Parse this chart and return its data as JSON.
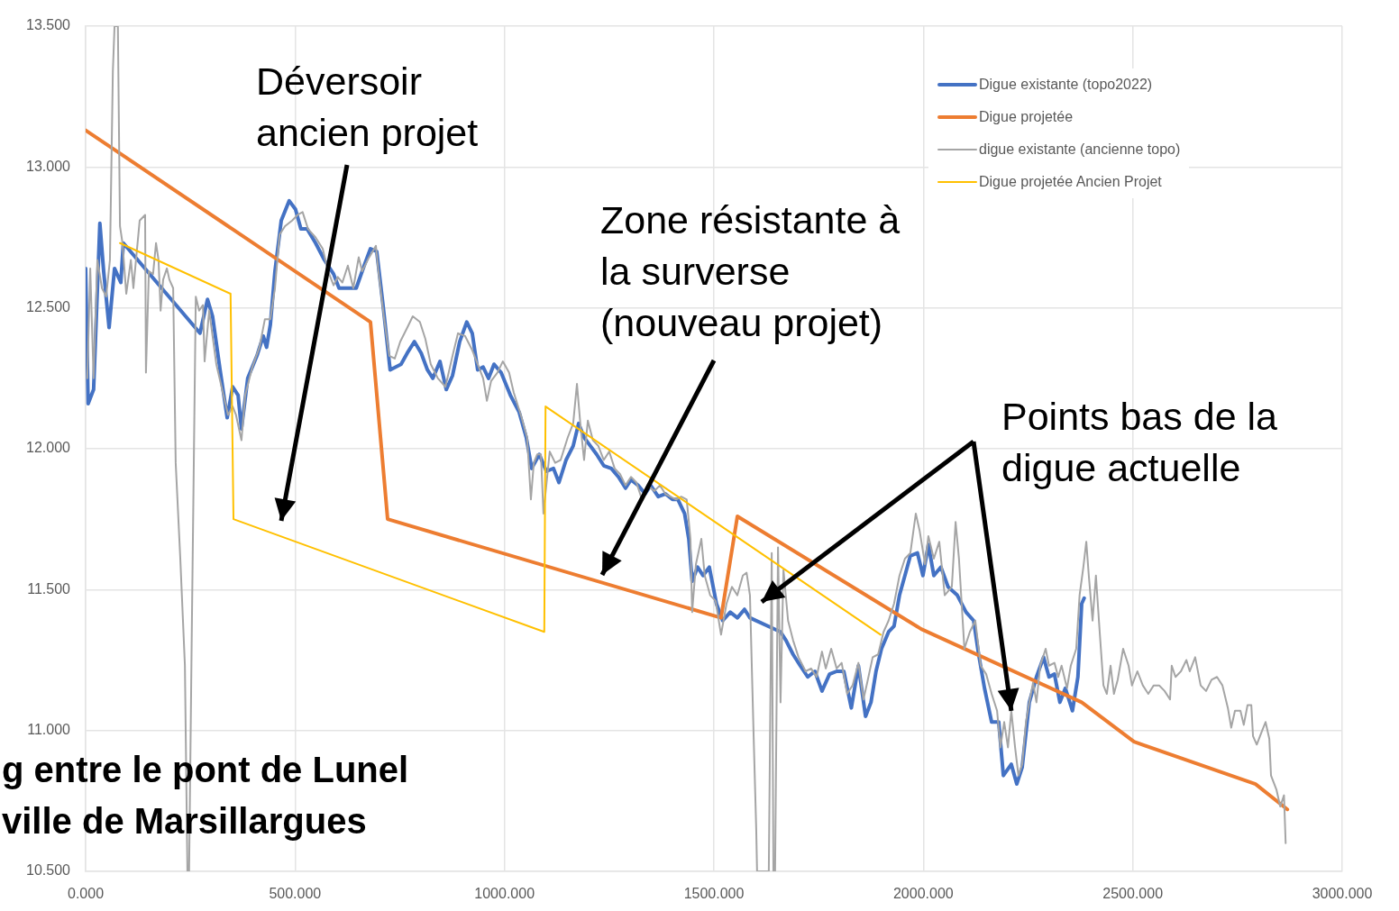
{
  "chart_data": {
    "type": "line",
    "xlim": [
      0,
      3000
    ],
    "ylim": [
      10.5,
      13.5
    ],
    "xticks": [
      {
        "value": 0,
        "label": "0.000"
      },
      {
        "value": 500,
        "label": "500.000"
      },
      {
        "value": 1000,
        "label": "1000.000"
      },
      {
        "value": 1500,
        "label": "1500.000"
      },
      {
        "value": 2000,
        "label": "2000.000"
      },
      {
        "value": 2500,
        "label": "2500.000"
      },
      {
        "value": 3000,
        "label": "3000.000"
      }
    ],
    "yticks": [
      {
        "value": 10.5,
        "label": "10.500"
      },
      {
        "value": 11,
        "label": "11.000"
      },
      {
        "value": 11.5,
        "label": "11.500"
      },
      {
        "value": 12,
        "label": "12.000"
      },
      {
        "value": 12.5,
        "label": "12.500"
      },
      {
        "value": 13,
        "label": "13.000"
      },
      {
        "value": 13.5,
        "label": "13.500"
      }
    ],
    "grid": true,
    "legend": "top right",
    "marker": "none",
    "line_style": "solid",
    "series": [
      {
        "name": "Digue existante (topo2022)",
        "color": "#4472c4",
        "x": [
          0,
          6,
          19,
          34,
          43,
          56,
          69,
          84,
          90,
          273,
          291,
          303,
          321,
          338,
          351,
          364,
          372,
          387,
          409,
          424,
          432,
          441,
          452,
          467,
          486,
          501,
          514,
          529,
          549,
          570,
          592,
          605,
          646,
          665,
          680,
          695,
          710,
          727,
          753,
          768,
          785,
          801,
          816,
          829,
          846,
          861,
          876,
          893,
          910,
          923,
          936,
          949,
          962,
          975,
          992,
          1014,
          1035,
          1052,
          1065,
          1083,
          1100,
          1117,
          1130,
          1147,
          1164,
          1177,
          1190,
          1205,
          1220,
          1237,
          1255,
          1272,
          1289,
          1302,
          1319,
          1336,
          1349,
          1367,
          1384,
          1401,
          1414,
          1430,
          1440,
          1448,
          1461,
          1474,
          1489,
          1506,
          1521,
          1539,
          1556,
          1573,
          1586,
          1659,
          1672,
          1689,
          1706,
          1724,
          1741,
          1758,
          1776,
          1793,
          1810,
          1828,
          1845,
          1862,
          1875,
          1887,
          1900,
          1917,
          1930,
          1943,
          1956,
          1969,
          1986,
          1999,
          2012,
          2025,
          2042,
          2059,
          2081,
          2102,
          2120,
          2132,
          2146,
          2163,
          2180,
          2191,
          2210,
          2223,
          2236,
          2253,
          2270,
          2287,
          2300,
          2313,
          2326,
          2339,
          2356,
          2369,
          2378,
          2384
        ],
        "values": [
          12.64,
          12.16,
          12.21,
          12.8,
          12.63,
          12.43,
          12.64,
          12.59,
          12.73,
          12.41,
          12.53,
          12.47,
          12.28,
          12.11,
          12.22,
          12.19,
          12.07,
          12.25,
          12.33,
          12.4,
          12.36,
          12.44,
          12.63,
          12.81,
          12.88,
          12.85,
          12.78,
          12.78,
          12.73,
          12.67,
          12.62,
          12.57,
          12.57,
          12.65,
          12.71,
          12.7,
          12.51,
          12.28,
          12.3,
          12.34,
          12.38,
          12.34,
          12.28,
          12.25,
          12.31,
          12.21,
          12.26,
          12.38,
          12.45,
          12.41,
          12.28,
          12.29,
          12.25,
          12.3,
          12.27,
          12.19,
          12.13,
          12.04,
          11.93,
          11.98,
          11.92,
          11.93,
          11.88,
          11.96,
          12.01,
          12.09,
          12.04,
          12.01,
          11.98,
          11.94,
          11.93,
          11.9,
          11.86,
          11.89,
          11.87,
          11.84,
          11.87,
          11.83,
          11.84,
          11.82,
          11.82,
          11.77,
          11.68,
          11.53,
          11.58,
          11.55,
          11.58,
          11.45,
          11.39,
          11.42,
          11.4,
          11.43,
          11.4,
          11.35,
          11.32,
          11.27,
          11.23,
          11.19,
          11.21,
          11.14,
          11.2,
          11.21,
          11.21,
          11.08,
          11.23,
          11.05,
          11.1,
          11.21,
          11.29,
          11.35,
          11.37,
          11.48,
          11.55,
          11.62,
          11.63,
          11.55,
          11.66,
          11.55,
          11.58,
          11.51,
          11.48,
          11.42,
          11.39,
          11.27,
          11.15,
          11.03,
          11.03,
          10.84,
          10.88,
          10.81,
          10.87,
          11.1,
          11.19,
          11.26,
          11.19,
          11.2,
          11.1,
          11.15,
          11.07,
          11.19,
          11.45,
          11.47
        ]
      },
      {
        "name": "Digue projetée",
        "color": "#ed7d31",
        "x": [
          0,
          680,
          721,
          1517,
          1556,
          1995,
          2378,
          2503,
          2793,
          2869
        ],
        "values": [
          13.13,
          12.45,
          11.75,
          11.4,
          11.76,
          11.36,
          11.1,
          10.96,
          10.81,
          10.72
        ]
      },
      {
        "name": "digue existante (ancienne topo)",
        "color": "#a5a5a5",
        "x": [
          4,
          11,
          19,
          28,
          39,
          49,
          58,
          65,
          69,
          77,
          82,
          88,
          97,
          108,
          114,
          129,
          142,
          144,
          151,
          161,
          168,
          174,
          179,
          185,
          194,
          200,
          209,
          215,
          226,
          237,
          243,
          247,
          254,
          263,
          271,
          280,
          284,
          295,
          312,
          329,
          340,
          351,
          359,
          372,
          381,
          398,
          415,
          428,
          441,
          452,
          463,
          476,
          493,
          506,
          518,
          531,
          549,
          566,
          579,
          592,
          602,
          613,
          626,
          639,
          652,
          660,
          677,
          693,
          699,
          712,
          725,
          738,
          751,
          768,
          781,
          798,
          811,
          824,
          841,
          859,
          876,
          889,
          906,
          923,
          936,
          949,
          958,
          968,
          983,
          996,
          1011,
          1022,
          1039,
          1054,
          1063,
          1070,
          1078,
          1087,
          1093,
          1108,
          1121,
          1134,
          1151,
          1164,
          1173,
          1181,
          1190,
          1199,
          1211,
          1224,
          1237,
          1250,
          1263,
          1276,
          1289,
          1302,
          1315,
          1328,
          1341,
          1358,
          1371,
          1384,
          1396,
          1410,
          1422,
          1435,
          1444,
          1448,
          1457,
          1470,
          1478,
          1491,
          1504,
          1517,
          1530,
          1543,
          1556,
          1569,
          1578,
          1586,
          1595,
          1601,
          1603,
          1631,
          1638,
          1642,
          1646,
          1653,
          1659,
          1666,
          1677,
          1689,
          1702,
          1719,
          1732,
          1745,
          1758,
          1767,
          1780,
          1793,
          1805,
          1818,
          1831,
          1845,
          1857,
          1866,
          1879,
          1892,
          1905,
          1917,
          1930,
          1943,
          1956,
          1969,
          1982,
          1991,
          2004,
          2012,
          2025,
          2038,
          2051,
          2068,
          2077,
          2085,
          2098,
          2111,
          2124,
          2137,
          2150,
          2163,
          2176,
          2184,
          2193,
          2202,
          2210,
          2219,
          2227,
          2236,
          2245,
          2253,
          2262,
          2270,
          2279,
          2292,
          2300,
          2313,
          2322,
          2330,
          2343,
          2352,
          2365,
          2373,
          2382,
          2389,
          2395,
          2404,
          2412,
          2421,
          2430,
          2438,
          2447,
          2455,
          2464,
          2477,
          2490,
          2498,
          2511,
          2524,
          2537,
          2550,
          2563,
          2576,
          2589,
          2593,
          2602,
          2615,
          2628,
          2636,
          2649,
          2662,
          2675,
          2688,
          2701,
          2714,
          2727,
          2735,
          2744,
          2757,
          2765,
          2774,
          2783,
          2787,
          2796,
          2809,
          2817,
          2826,
          2830,
          2843,
          2852,
          2861,
          2865
        ],
        "values": [
          12.25,
          12.64,
          12.25,
          12.67,
          12.57,
          12.54,
          12.67,
          13.34,
          13.5,
          13.5,
          12.79,
          12.73,
          12.55,
          12.67,
          12.57,
          12.81,
          12.83,
          12.27,
          12.63,
          12.62,
          12.73,
          12.67,
          12.49,
          12.6,
          12.64,
          12.6,
          12.57,
          11.95,
          11.61,
          11.23,
          10.5,
          10.5,
          11.42,
          12.54,
          12.49,
          12.51,
          12.31,
          12.49,
          12.3,
          12.19,
          12.12,
          12.15,
          12.12,
          12.03,
          12.19,
          12.29,
          12.36,
          12.46,
          12.46,
          12.57,
          12.76,
          12.79,
          12.81,
          12.83,
          12.84,
          12.78,
          12.75,
          12.71,
          12.63,
          12.58,
          12.61,
          12.59,
          12.65,
          12.57,
          12.68,
          12.63,
          12.68,
          12.72,
          12.63,
          12.47,
          12.33,
          12.32,
          12.38,
          12.43,
          12.47,
          12.45,
          12.39,
          12.3,
          12.25,
          12.22,
          12.33,
          12.41,
          12.4,
          12.35,
          12.3,
          12.25,
          12.17,
          12.24,
          12.27,
          12.31,
          12.27,
          12.2,
          12.12,
          12.04,
          11.82,
          11.95,
          11.98,
          11.98,
          11.77,
          11.99,
          11.95,
          11.96,
          12.04,
          12.09,
          12.23,
          12.09,
          11.96,
          12.1,
          12.03,
          12.01,
          11.96,
          11.99,
          11.93,
          11.91,
          11.87,
          11.9,
          11.88,
          11.82,
          11.87,
          11.85,
          11.87,
          11.84,
          11.83,
          11.82,
          11.83,
          11.82,
          11.68,
          11.42,
          11.59,
          11.68,
          11.55,
          11.48,
          11.46,
          11.34,
          11.45,
          11.51,
          11.48,
          11.55,
          11.56,
          11.48,
          10.97,
          10.65,
          10.5,
          10.5,
          11.63,
          10.5,
          10.5,
          11.65,
          11.1,
          11.57,
          11.39,
          11.32,
          11.26,
          11.21,
          11.22,
          11.19,
          11.28,
          11.22,
          11.29,
          11.22,
          11.24,
          11.13,
          11.16,
          11.24,
          11.11,
          11.17,
          11.26,
          11.27,
          11.35,
          11.39,
          11.45,
          11.55,
          11.61,
          11.63,
          11.77,
          11.71,
          11.59,
          11.69,
          11.61,
          11.67,
          11.48,
          11.51,
          11.74,
          11.61,
          11.29,
          11.35,
          11.39,
          11.23,
          11.2,
          11.13,
          11.07,
          10.94,
          11.03,
          10.94,
          11.07,
          10.94,
          10.84,
          10.88,
          11.03,
          11.1,
          11.17,
          11.1,
          11.23,
          11.29,
          11.23,
          11.24,
          11.19,
          11.23,
          11.15,
          11.23,
          11.29,
          11.48,
          11.58,
          11.67,
          11.55,
          11.39,
          11.55,
          11.35,
          11.16,
          11.13,
          11.23,
          11.13,
          11.18,
          11.29,
          11.23,
          11.16,
          11.21,
          11.16,
          11.13,
          11.16,
          11.16,
          11.14,
          11.11,
          11.23,
          11.19,
          11.21,
          11.25,
          11.21,
          11.26,
          11.16,
          11.14,
          11.18,
          11.19,
          11.16,
          11.08,
          11.01,
          11.07,
          11.07,
          11.02,
          11.09,
          11.09,
          10.98,
          10.95,
          11,
          11.03,
          10.97,
          10.84,
          10.79,
          10.73,
          10.77,
          10.6
        ]
      },
      {
        "name": "Digue projetée Ancien Projet",
        "color": "#ffc000",
        "x": [
          82,
          346,
          353,
          1095,
          1098,
          1898
        ],
        "values": [
          12.73,
          12.55,
          11.75,
          11.35,
          12.15,
          11.34
        ]
      }
    ],
    "annotations": [
      "Déversoir\nancien projet",
      "Zone résistante à\nla surverse\n(nouveau projet)",
      {
        "text": "Points bas de la\ndigue actuelle",
        "x": 2210,
        "y": 11.07
      },
      "g entre le pont de Lunel\nville de Marsillargues"
    ]
  }
}
